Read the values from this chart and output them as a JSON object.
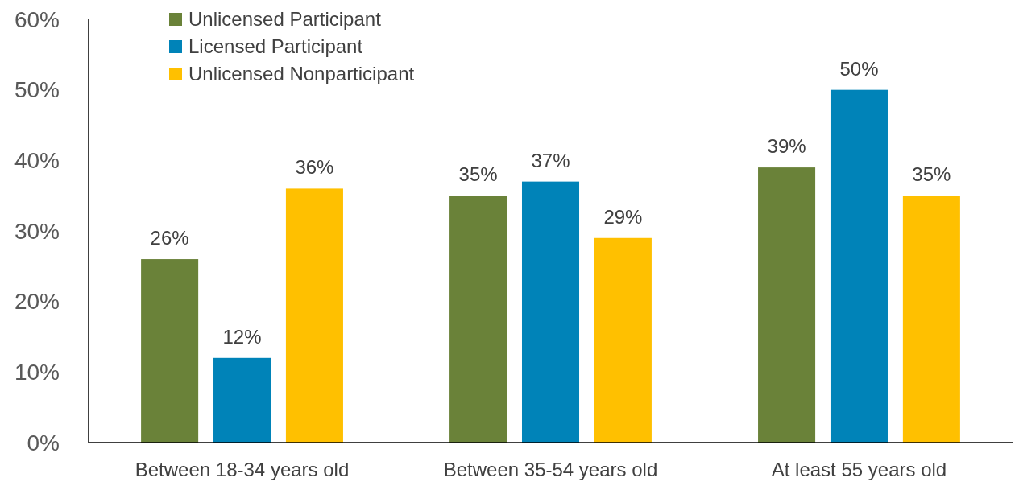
{
  "chart_data": {
    "type": "bar",
    "categories": [
      "Between 18-34 years old",
      "Between 35-54 years old",
      "At least 55 years old"
    ],
    "series": [
      {
        "name": "Unlicensed Participant",
        "color": "#6a8239",
        "values": [
          26,
          35,
          39
        ]
      },
      {
        "name": "Licensed Participant",
        "color": "#0083b8",
        "values": [
          12,
          37,
          50
        ]
      },
      {
        "name": "Unlicensed Nonparticipant",
        "color": "#ffc000",
        "values": [
          36,
          29,
          35
        ]
      }
    ],
    "ylim": [
      0,
      60
    ],
    "yticks": [
      {
        "value": 0,
        "label": "0%"
      },
      {
        "value": 10,
        "label": "10%"
      },
      {
        "value": 20,
        "label": "20%"
      },
      {
        "value": 30,
        "label": "30%"
      },
      {
        "value": 40,
        "label": "40%"
      },
      {
        "value": 50,
        "label": "50%"
      },
      {
        "value": 60,
        "label": "60%"
      }
    ],
    "value_labels": [
      [
        "26%",
        "35%",
        "39%"
      ],
      [
        "12%",
        "37%",
        "50%"
      ],
      [
        "36%",
        "29%",
        "35%"
      ]
    ],
    "legend": "top left",
    "grid": false
  }
}
